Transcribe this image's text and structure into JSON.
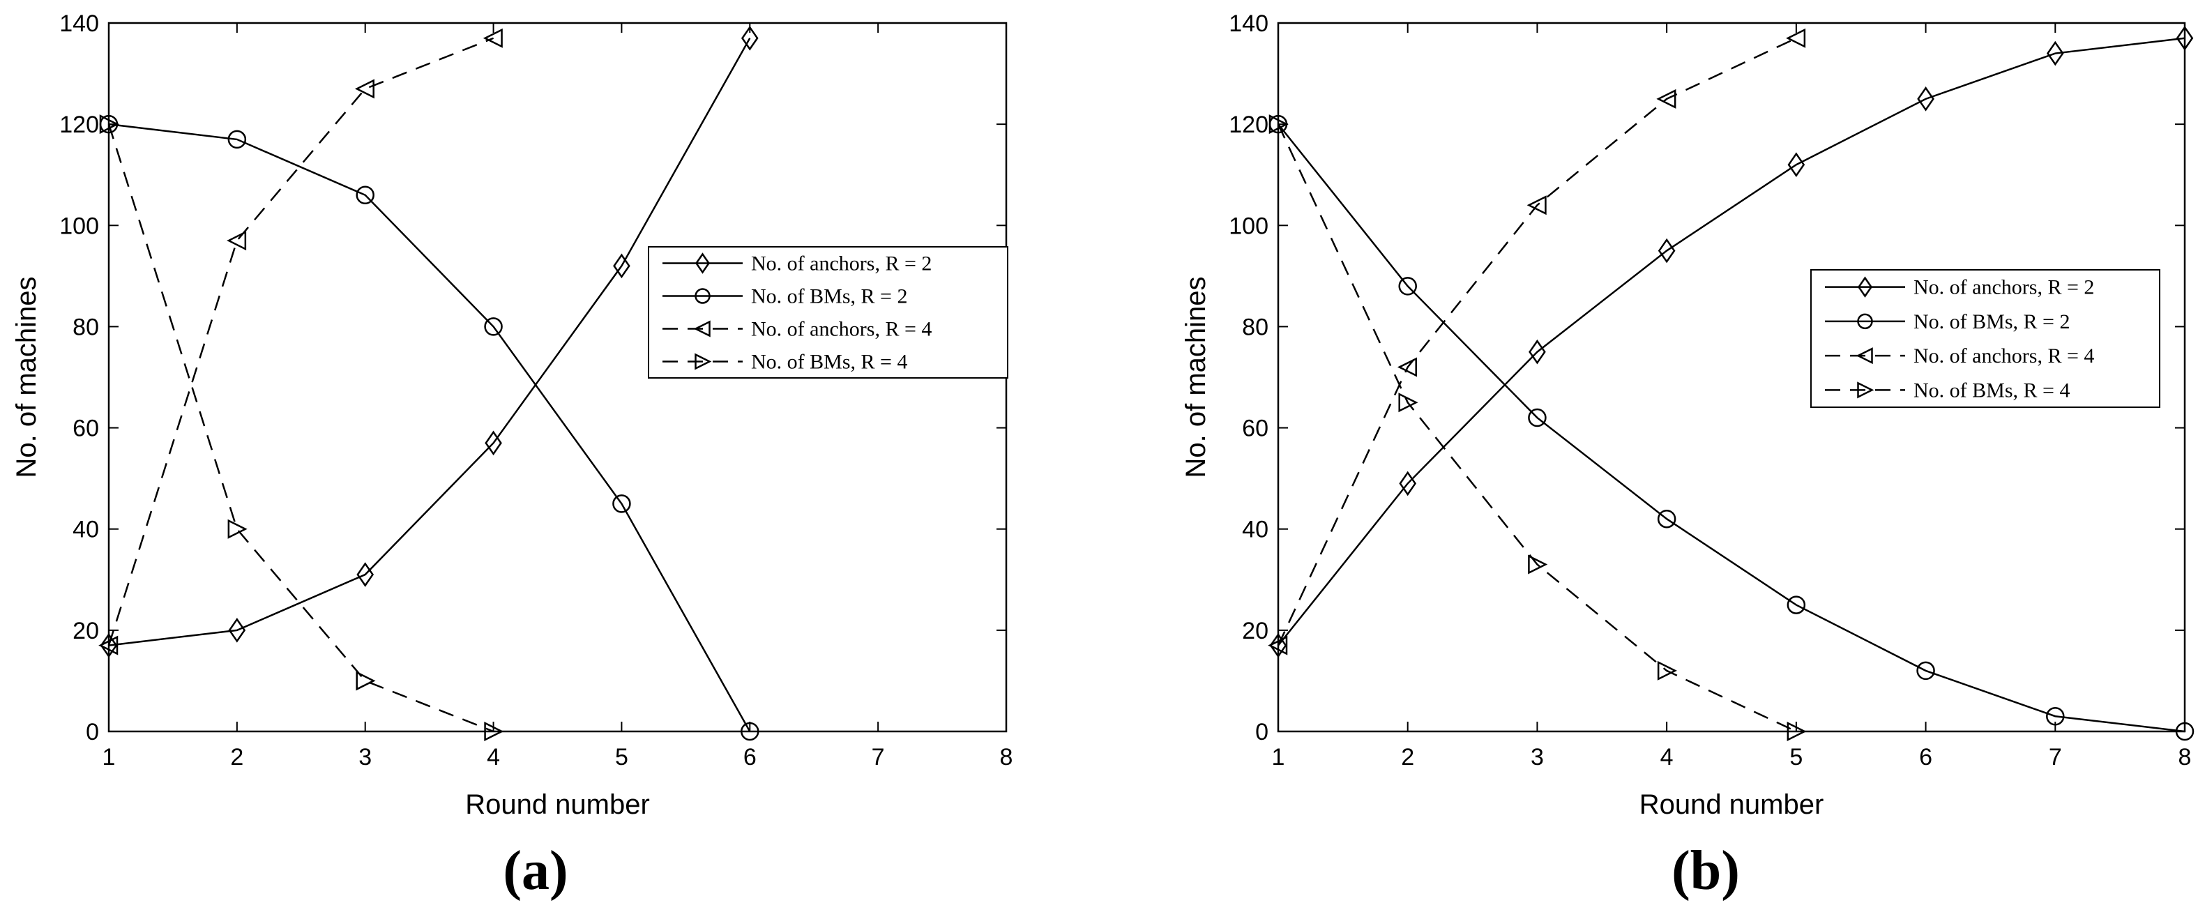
{
  "chart_data": [
    {
      "type": "line",
      "panel_label": "(a)",
      "xlabel": "Round number",
      "ylabel": "No. of machines",
      "xlim": [
        1,
        8
      ],
      "ylim": [
        0,
        140
      ],
      "xticks": [
        "1",
        "2",
        "3",
        "4",
        "5",
        "6",
        "7",
        "8"
      ],
      "yticks": [
        "0",
        "20",
        "40",
        "60",
        "80",
        "100",
        "120",
        "140"
      ],
      "grid": false,
      "legend_position": "center-right",
      "series": [
        {
          "name": "No. of anchors, R = 2",
          "line": "solid",
          "marker": "diamond",
          "x": [
            1,
            2,
            3,
            4,
            5,
            6
          ],
          "y": [
            17,
            20,
            31,
            57,
            92,
            137
          ]
        },
        {
          "name": "No. of BMs, R = 2",
          "line": "solid",
          "marker": "circle",
          "x": [
            1,
            2,
            3,
            4,
            5,
            6
          ],
          "y": [
            120,
            117,
            106,
            80,
            45,
            0
          ]
        },
        {
          "name": "No. of anchors, R = 4",
          "line": "dashed",
          "marker": "triangle-left",
          "x": [
            1,
            2,
            3,
            4
          ],
          "y": [
            17,
            97,
            127,
            137
          ]
        },
        {
          "name": "No. of BMs, R = 4",
          "line": "dashed",
          "marker": "triangle-right",
          "x": [
            1,
            2,
            3,
            4
          ],
          "y": [
            120,
            40,
            10,
            0
          ]
        }
      ]
    },
    {
      "type": "line",
      "panel_label": "(b)",
      "xlabel": "Round number",
      "ylabel": "No. of machines",
      "xlim": [
        1,
        8
      ],
      "ylim": [
        0,
        140
      ],
      "xticks": [
        "1",
        "2",
        "3",
        "4",
        "5",
        "6",
        "7",
        "8"
      ],
      "yticks": [
        "0",
        "20",
        "40",
        "60",
        "80",
        "100",
        "120",
        "140"
      ],
      "grid": false,
      "legend_position": "center-right",
      "series": [
        {
          "name": "No. of anchors, R = 2",
          "line": "solid",
          "marker": "diamond",
          "x": [
            1,
            2,
            3,
            4,
            5,
            6,
            7,
            8
          ],
          "y": [
            17,
            49,
            75,
            95,
            112,
            125,
            134,
            137
          ]
        },
        {
          "name": "No. of BMs, R = 2",
          "line": "solid",
          "marker": "circle",
          "x": [
            1,
            2,
            3,
            4,
            5,
            6,
            7,
            8
          ],
          "y": [
            120,
            88,
            62,
            42,
            25,
            12,
            3,
            0
          ]
        },
        {
          "name": "No. of anchors, R = 4",
          "line": "dashed",
          "marker": "triangle-left",
          "x": [
            1,
            2,
            3,
            4,
            5
          ],
          "y": [
            17,
            72,
            104,
            125,
            137
          ]
        },
        {
          "name": "No. of BMs, R = 4",
          "line": "dashed",
          "marker": "triangle-right",
          "x": [
            1,
            2,
            3,
            4,
            5
          ],
          "y": [
            120,
            65,
            33,
            12,
            0
          ]
        }
      ]
    }
  ]
}
